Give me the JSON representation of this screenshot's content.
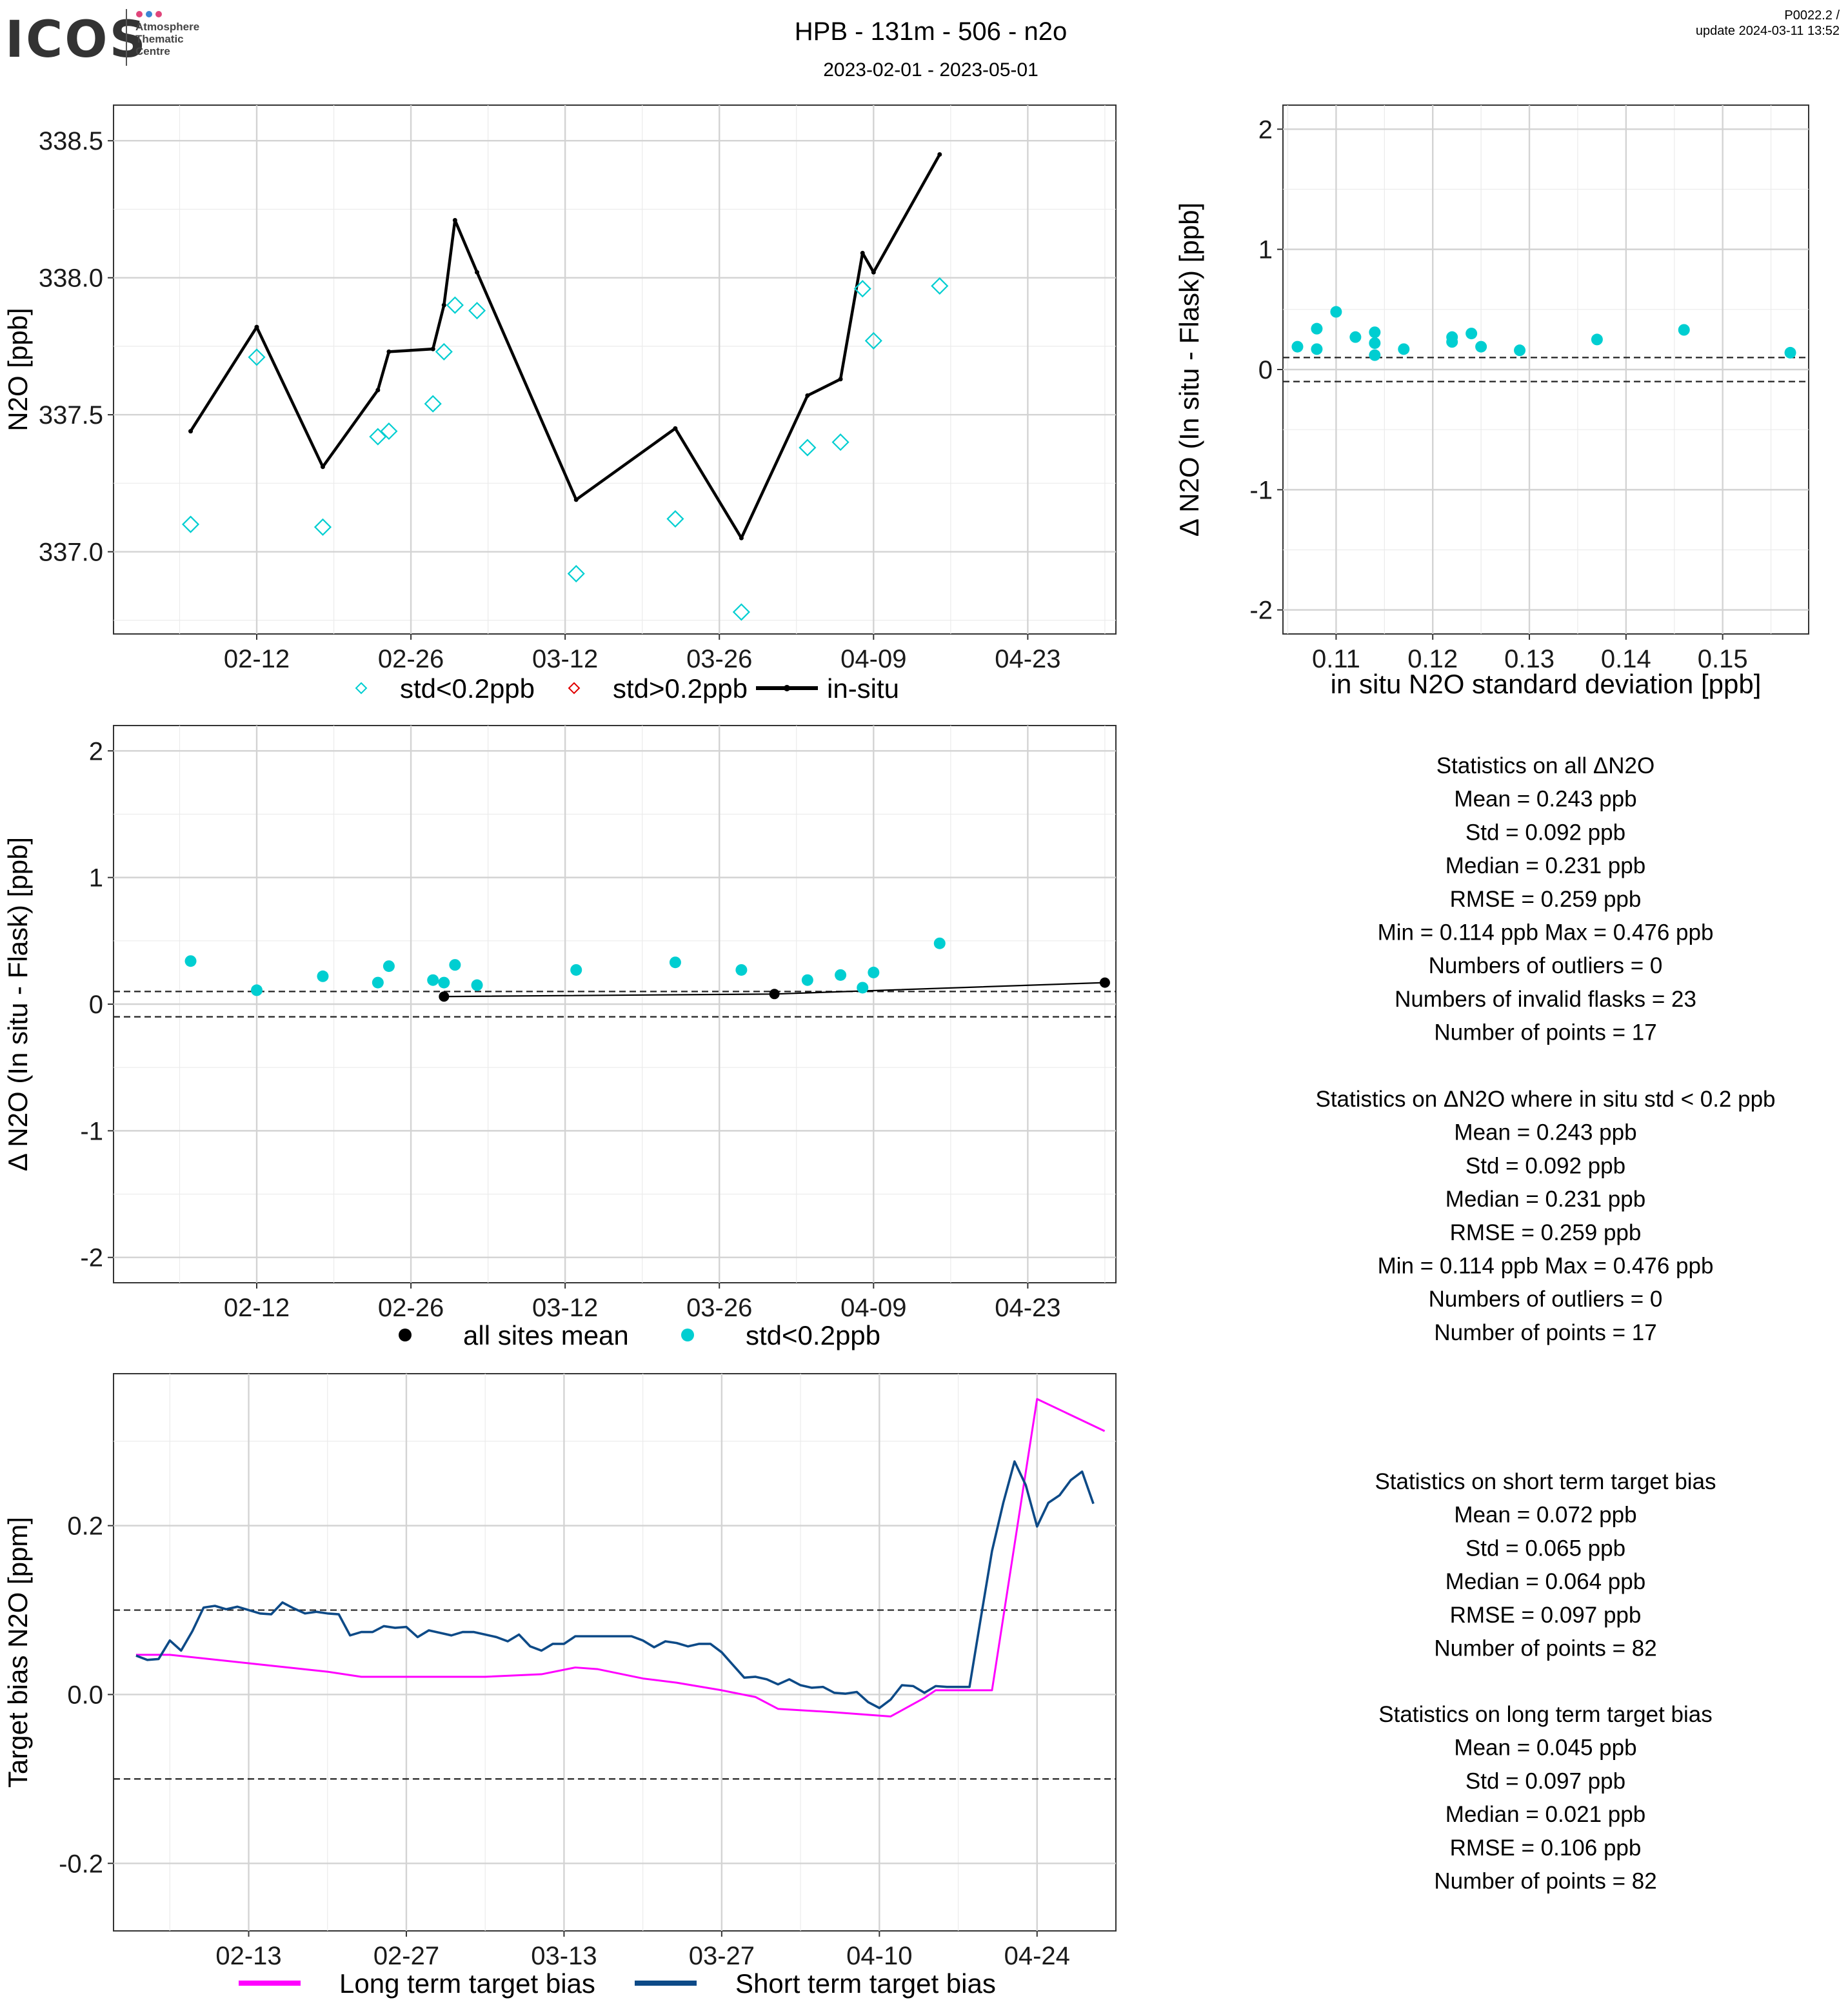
{
  "header": {
    "logo_text": "ICOS",
    "logo_sub": [
      "Atmosphere",
      "Thematic",
      "Centre"
    ],
    "title": "HPB - 131m - 506 - n2o",
    "subtitle": "2023-02-01 - 2023-05-01",
    "code": "P0022.2 /",
    "update": "update  2024-03-11 13:52",
    "colors": {
      "logo_dot1": "#e0457b",
      "logo_dot2": "#3a86d4",
      "logo_dot3": "#e0457b"
    }
  },
  "chart_data": [
    {
      "id": "timeseries",
      "type": "line",
      "ylabel": "N2O [ppb]",
      "xlabel": "",
      "x_ticks": [
        "02-12",
        "02-26",
        "03-12",
        "03-26",
        "04-09",
        "04-23"
      ],
      "y_ticks": [
        "337.0",
        "337.5",
        "338.0",
        "338.5"
      ],
      "ylim": [
        336.7,
        338.63
      ],
      "xlim": [
        "2023-01-30",
        "2023-05-01"
      ],
      "grid": true,
      "legend_position": "bottom",
      "legend": [
        "std<0.2ppb",
        "std>0.2ppb",
        "in-situ"
      ],
      "colors": {
        "low_std": "#00ced1",
        "high_std": "#e00000",
        "in_situ": "#000000"
      },
      "series": [
        {
          "name": "in-situ",
          "style": "line",
          "points": [
            [
              "2023-02-06",
              337.44
            ],
            [
              "2023-02-12",
              337.82
            ],
            [
              "2023-02-18",
              337.31
            ],
            [
              "2023-02-23",
              337.59
            ],
            [
              "2023-02-24",
              337.73
            ],
            [
              "2023-02-28",
              337.74
            ],
            [
              "2023-03-01",
              337.9
            ],
            [
              "2023-03-02",
              338.21
            ],
            [
              "2023-03-04",
              338.02
            ],
            [
              "2023-03-13",
              337.19
            ],
            [
              "2023-03-22",
              337.45
            ],
            [
              "2023-03-28",
              337.05
            ],
            [
              "2023-04-03",
              337.57
            ],
            [
              "2023-04-06",
              337.63
            ],
            [
              "2023-04-08",
              338.09
            ],
            [
              "2023-04-09",
              338.02
            ],
            [
              "2023-04-15",
              338.45
            ]
          ]
        },
        {
          "name": "std<0.2ppb",
          "style": "diamond",
          "points": [
            [
              "2023-02-06",
              337.1
            ],
            [
              "2023-02-12",
              337.71
            ],
            [
              "2023-02-18",
              337.09
            ],
            [
              "2023-02-23",
              337.42
            ],
            [
              "2023-02-24",
              337.44
            ],
            [
              "2023-02-28",
              337.54
            ],
            [
              "2023-03-01",
              337.73
            ],
            [
              "2023-03-02",
              337.9
            ],
            [
              "2023-03-04",
              337.88
            ],
            [
              "2023-03-13",
              336.92
            ],
            [
              "2023-03-22",
              337.12
            ],
            [
              "2023-03-28",
              336.78
            ],
            [
              "2023-04-03",
              337.38
            ],
            [
              "2023-04-06",
              337.4
            ],
            [
              "2023-04-08",
              337.96
            ],
            [
              "2023-04-09",
              337.77
            ],
            [
              "2023-04-15",
              337.97
            ]
          ]
        }
      ]
    },
    {
      "id": "scatter_std",
      "type": "scatter",
      "xlabel": "in situ N2O standard deviation [ppb]",
      "ylabel": "Δ N2O (In situ - Flask) [ppb]",
      "x_ticks": [
        "0.11",
        "0.12",
        "0.13",
        "0.14",
        "0.15"
      ],
      "y_ticks": [
        "-2",
        "-1",
        "0",
        "1",
        "2"
      ],
      "xlim": [
        0.1045,
        0.1589
      ],
      "ylim": [
        -2.2,
        2.2
      ],
      "hlines": [
        0.1,
        -0.1
      ],
      "grid": true,
      "colors": {
        "points": "#00ced1"
      },
      "points": [
        [
          0.106,
          0.19
        ],
        [
          0.108,
          0.34
        ],
        [
          0.108,
          0.17
        ],
        [
          0.11,
          0.48
        ],
        [
          0.112,
          0.27
        ],
        [
          0.114,
          0.31
        ],
        [
          0.114,
          0.22
        ],
        [
          0.114,
          0.12
        ],
        [
          0.117,
          0.17
        ],
        [
          0.122,
          0.27
        ],
        [
          0.122,
          0.23
        ],
        [
          0.124,
          0.3
        ],
        [
          0.125,
          0.19
        ],
        [
          0.129,
          0.16
        ],
        [
          0.137,
          0.25
        ],
        [
          0.146,
          0.33
        ],
        [
          0.157,
          0.14
        ]
      ]
    },
    {
      "id": "delta_timeseries",
      "type": "scatter",
      "xlabel": "",
      "ylabel": "Δ N2O (In situ - Flask) [ppb]",
      "x_ticks": [
        "02-12",
        "02-26",
        "03-12",
        "03-26",
        "04-09",
        "04-23"
      ],
      "y_ticks": [
        "-2",
        "-1",
        "0",
        "1",
        "2"
      ],
      "xlim": [
        "2023-01-30",
        "2023-05-01"
      ],
      "ylim": [
        -2.2,
        2.2
      ],
      "hlines": [
        0.1,
        -0.1
      ],
      "grid": true,
      "legend_position": "bottom",
      "legend": [
        "all sites mean",
        "std<0.2ppb"
      ],
      "colors": {
        "mean": "#000000",
        "points": "#00ced1"
      },
      "series": [
        {
          "name": "all sites mean",
          "style": "line+point",
          "points": [
            [
              "2023-03-01",
              0.06
            ],
            [
              "2023-03-31",
              0.08
            ],
            [
              "2023-04-30",
              0.17
            ]
          ]
        },
        {
          "name": "std<0.2ppb",
          "style": "point",
          "points": [
            [
              "2023-02-06",
              0.34
            ],
            [
              "2023-02-12",
              0.11
            ],
            [
              "2023-02-18",
              0.22
            ],
            [
              "2023-02-23",
              0.17
            ],
            [
              "2023-02-24",
              0.3
            ],
            [
              "2023-02-28",
              0.19
            ],
            [
              "2023-03-01",
              0.17
            ],
            [
              "2023-03-02",
              0.31
            ],
            [
              "2023-03-04",
              0.15
            ],
            [
              "2023-03-13",
              0.27
            ],
            [
              "2023-03-22",
              0.33
            ],
            [
              "2023-03-28",
              0.27
            ],
            [
              "2023-04-03",
              0.19
            ],
            [
              "2023-04-06",
              0.23
            ],
            [
              "2023-04-08",
              0.13
            ],
            [
              "2023-04-09",
              0.25
            ],
            [
              "2023-04-15",
              0.48
            ]
          ]
        }
      ]
    },
    {
      "id": "target_bias",
      "type": "line",
      "xlabel": "",
      "ylabel": "Target bias N2O [ppm]",
      "x_ticks": [
        "02-13",
        "02-27",
        "03-13",
        "03-27",
        "04-10",
        "04-24"
      ],
      "y_ticks": [
        "-0.2",
        "0.0",
        "0.2"
      ],
      "xlim": [
        "2023-02-01",
        "2023-05-01"
      ],
      "ylim": [
        -0.28,
        0.38
      ],
      "hlines": [
        0.1,
        -0.1
      ],
      "grid": true,
      "legend_position": "bottom",
      "legend": [
        "Long term target bias",
        "Short term target bias"
      ],
      "colors": {
        "long": "#ff00ff",
        "short": "#0d4a87"
      },
      "series": [
        {
          "name": "Long term target bias",
          "points": [
            [
              "2023-02-03",
              0.047
            ],
            [
              "2023-02-06",
              0.047
            ],
            [
              "2023-02-13",
              0.037
            ],
            [
              "2023-02-20",
              0.027
            ],
            [
              "2023-02-23",
              0.021
            ],
            [
              "2023-02-27",
              0.021
            ],
            [
              "2023-03-06",
              0.021
            ],
            [
              "2023-03-11",
              0.024
            ],
            [
              "2023-03-14",
              0.032
            ],
            [
              "2023-03-16",
              0.03
            ],
            [
              "2023-03-20",
              0.019
            ],
            [
              "2023-03-23",
              0.014
            ],
            [
              "2023-03-27",
              0.005
            ],
            [
              "2023-03-30",
              -0.003
            ],
            [
              "2023-04-01",
              -0.017
            ],
            [
              "2023-04-06",
              -0.021
            ],
            [
              "2023-04-11",
              -0.026
            ],
            [
              "2023-04-14",
              -0.004
            ],
            [
              "2023-04-15",
              0.005
            ],
            [
              "2023-04-17",
              0.005
            ],
            [
              "2023-04-20",
              0.005
            ],
            [
              "2023-04-24",
              0.35
            ],
            [
              "2023-04-30",
              0.312
            ]
          ]
        },
        {
          "name": "Short term target bias",
          "points": [
            [
              "2023-02-03",
              0.046
            ],
            [
              "2023-02-04",
              0.041
            ],
            [
              "2023-02-05",
              0.042
            ],
            [
              "2023-02-06",
              0.064
            ],
            [
              "2023-02-07",
              0.052
            ],
            [
              "2023-02-08",
              0.075
            ],
            [
              "2023-02-09",
              0.103
            ],
            [
              "2023-02-10",
              0.105
            ],
            [
              "2023-02-11",
              0.101
            ],
            [
              "2023-02-12",
              0.104
            ],
            [
              "2023-02-13",
              0.1
            ],
            [
              "2023-02-14",
              0.096
            ],
            [
              "2023-02-15",
              0.095
            ],
            [
              "2023-02-16",
              0.109
            ],
            [
              "2023-02-17",
              0.102
            ],
            [
              "2023-02-18",
              0.096
            ],
            [
              "2023-02-19",
              0.098
            ],
            [
              "2023-02-20",
              0.096
            ],
            [
              "2023-02-21",
              0.095
            ],
            [
              "2023-02-22",
              0.07
            ],
            [
              "2023-02-23",
              0.074
            ],
            [
              "2023-02-24",
              0.074
            ],
            [
              "2023-02-25",
              0.081
            ],
            [
              "2023-02-26",
              0.079
            ],
            [
              "2023-02-27",
              0.08
            ],
            [
              "2023-02-28",
              0.068
            ],
            [
              "2023-03-01",
              0.076
            ],
            [
              "2023-03-02",
              0.073
            ],
            [
              "2023-03-03",
              0.07
            ],
            [
              "2023-03-04",
              0.074
            ],
            [
              "2023-03-05",
              0.074
            ],
            [
              "2023-03-06",
              0.071
            ],
            [
              "2023-03-07",
              0.068
            ],
            [
              "2023-03-08",
              0.063
            ],
            [
              "2023-03-09",
              0.071
            ],
            [
              "2023-03-10",
              0.057
            ],
            [
              "2023-03-11",
              0.052
            ],
            [
              "2023-03-12",
              0.06
            ],
            [
              "2023-03-13",
              0.06
            ],
            [
              "2023-03-14",
              0.069
            ],
            [
              "2023-03-16",
              0.069
            ],
            [
              "2023-03-19",
              0.069
            ],
            [
              "2023-03-20",
              0.064
            ],
            [
              "2023-03-21",
              0.056
            ],
            [
              "2023-03-22",
              0.063
            ],
            [
              "2023-03-23",
              0.061
            ],
            [
              "2023-03-24",
              0.057
            ],
            [
              "2023-03-25",
              0.06
            ],
            [
              "2023-03-26",
              0.06
            ],
            [
              "2023-03-27",
              0.05
            ],
            [
              "2023-03-28",
              0.035
            ],
            [
              "2023-03-29",
              0.02
            ],
            [
              "2023-03-30",
              0.021
            ],
            [
              "2023-03-31",
              0.018
            ],
            [
              "2023-04-01",
              0.012
            ],
            [
              "2023-04-02",
              0.018
            ],
            [
              "2023-04-03",
              0.011
            ],
            [
              "2023-04-04",
              0.008
            ],
            [
              "2023-04-05",
              0.009
            ],
            [
              "2023-04-06",
              0.002
            ],
            [
              "2023-04-07",
              0.001
            ],
            [
              "2023-04-08",
              0.003
            ],
            [
              "2023-04-09",
              -0.009
            ],
            [
              "2023-04-10",
              -0.016
            ],
            [
              "2023-04-11",
              -0.006
            ],
            [
              "2023-04-12",
              0.011
            ],
            [
              "2023-04-13",
              0.01
            ],
            [
              "2023-04-14",
              0.002
            ],
            [
              "2023-04-15",
              0.01
            ],
            [
              "2023-04-16",
              0.009
            ],
            [
              "2023-04-17",
              0.009
            ],
            [
              "2023-04-18",
              0.009
            ],
            [
              "2023-04-19",
              0.09
            ],
            [
              "2023-04-20",
              0.17
            ],
            [
              "2023-04-21",
              0.227
            ],
            [
              "2023-04-22",
              0.276
            ],
            [
              "2023-04-23",
              0.248
            ],
            [
              "2023-04-24",
              0.199
            ],
            [
              "2023-04-25",
              0.227
            ],
            [
              "2023-04-26",
              0.236
            ],
            [
              "2023-04-27",
              0.254
            ],
            [
              "2023-04-28",
              0.264
            ],
            [
              "2023-04-29",
              0.226
            ]
          ]
        }
      ]
    }
  ],
  "stats": {
    "block1": [
      "Statistics on all ΔN2O",
      "Mean =  0.243 ppb",
      "Std =  0.092 ppb",
      "Median =  0.231 ppb",
      "RMSE =  0.259 ppb",
      "Min =  0.114 ppb Max =  0.476 ppb",
      "Numbers of outliers =  0",
      "Numbers of invalid flasks =  23",
      "Number of points =  17"
    ],
    "block2": [
      "Statistics on ΔN2O where in situ std < 0.2 ppb",
      "Mean =  0.243 ppb",
      "Std =  0.092 ppb",
      "Median =  0.231 ppb",
      "RMSE =  0.259 ppb",
      "Min =  0.114 ppb Max =  0.476 ppb",
      "Numbers of outliers =  0",
      "Number of points =  17"
    ],
    "block3": [
      "Statistics on short term target bias",
      "Mean =  0.072 ppb",
      "Std =  0.065 ppb",
      "Median =  0.064 ppb",
      "RMSE =  0.097 ppb",
      "Number of points =  82"
    ],
    "block4": [
      "Statistics on long term target bias",
      "Mean =  0.045 ppb",
      "Std =  0.097 ppb",
      "Median =  0.021 ppb",
      "RMSE =  0.106 ppb",
      "Number of points =  82"
    ]
  }
}
